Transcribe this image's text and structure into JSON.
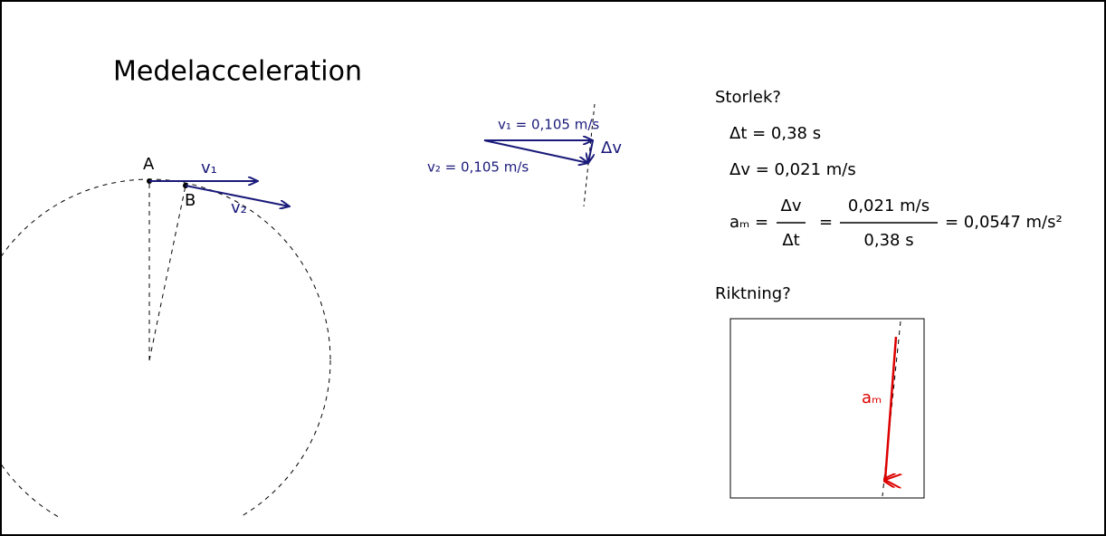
{
  "title": "Medelacceleration",
  "circle_diagram": {
    "point_a": "A",
    "point_b": "B",
    "v1_label": "v₁",
    "v2_label": "v₂"
  },
  "vector_difference": {
    "v1": "v₁ = 0,105 m/s",
    "v2": "v₂ = 0,105 m/s",
    "dv": "Δv"
  },
  "magnitude": {
    "heading": "Storlek?",
    "dt": "Δt = 0,38 s",
    "dv": "Δv = 0,021 m/s",
    "formula": {
      "lhs": "aₘ =",
      "frac1_num": "Δv",
      "frac1_den": "Δt",
      "eq": "=",
      "frac2_num": "0,021 m/s",
      "frac2_den": "0,38 s",
      "result": "= 0,0547 m/s²"
    }
  },
  "direction": {
    "heading": "Riktning?",
    "label": "aₘ"
  }
}
